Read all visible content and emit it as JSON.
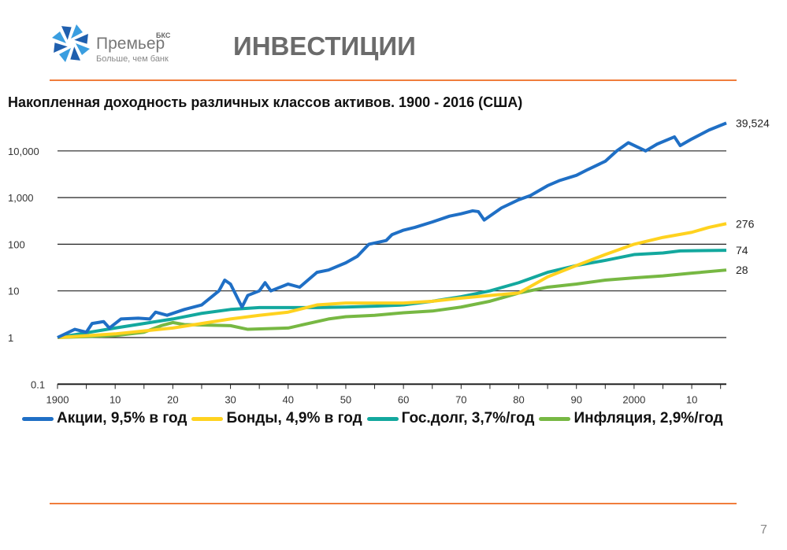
{
  "header": {
    "logo_name": "Премьер",
    "logo_sup": "БКС",
    "logo_tagline": "Больше, чем банк",
    "title": "ИНВЕСТИЦИИ"
  },
  "page_number": "7",
  "chart_data": {
    "type": "line",
    "title": "Накопленная доходность различных классов активов. 1900 - 2016 (США)",
    "xlabel": "",
    "ylabel": "",
    "yscale": "log",
    "ylim": [
      0.1,
      40000
    ],
    "xlim": [
      1900,
      2016
    ],
    "x_ticks": [
      1900,
      1910,
      1920,
      1930,
      1940,
      1950,
      1960,
      1970,
      1980,
      1990,
      2000,
      2010
    ],
    "x_tick_labels": [
      "1900",
      "10",
      "20",
      "30",
      "40",
      "50",
      "60",
      "70",
      "80",
      "90",
      "2000",
      "10"
    ],
    "y_ticks": [
      0.1,
      1,
      10,
      100,
      1000,
      10000
    ],
    "y_tick_labels": [
      "0.1",
      "1",
      "10",
      "100",
      "1,000",
      "10,000"
    ],
    "grid": true,
    "legend": "bottom",
    "series": [
      {
        "name": "Акции, 9,5% в год",
        "color": "#1f6fc5",
        "end_label": "39,524",
        "points": [
          [
            1900,
            1
          ],
          [
            1903,
            1.5
          ],
          [
            1905,
            1.3
          ],
          [
            1906,
            2
          ],
          [
            1908,
            2.2
          ],
          [
            1909,
            1.6
          ],
          [
            1911,
            2.5
          ],
          [
            1914,
            2.6
          ],
          [
            1916,
            2.5
          ],
          [
            1917,
            3.5
          ],
          [
            1919,
            3
          ],
          [
            1922,
            4
          ],
          [
            1925,
            5
          ],
          [
            1928,
            10
          ],
          [
            1929,
            17
          ],
          [
            1930,
            14
          ],
          [
            1932,
            4.5
          ],
          [
            1933,
            8
          ],
          [
            1935,
            10
          ],
          [
            1936,
            15
          ],
          [
            1937,
            10
          ],
          [
            1940,
            14
          ],
          [
            1942,
            12
          ],
          [
            1945,
            25
          ],
          [
            1947,
            28
          ],
          [
            1950,
            40
          ],
          [
            1952,
            55
          ],
          [
            1954,
            100
          ],
          [
            1957,
            120
          ],
          [
            1958,
            160
          ],
          [
            1960,
            200
          ],
          [
            1962,
            230
          ],
          [
            1965,
            300
          ],
          [
            1968,
            400
          ],
          [
            1970,
            450
          ],
          [
            1972,
            520
          ],
          [
            1973,
            500
          ],
          [
            1974,
            330
          ],
          [
            1977,
            600
          ],
          [
            1980,
            900
          ],
          [
            1982,
            1100
          ],
          [
            1985,
            1800
          ],
          [
            1987,
            2300
          ],
          [
            1990,
            3000
          ],
          [
            1992,
            4000
          ],
          [
            1995,
            6000
          ],
          [
            1997,
            10000
          ],
          [
            1999,
            15000
          ],
          [
            2002,
            10000
          ],
          [
            2004,
            14000
          ],
          [
            2007,
            20000
          ],
          [
            2008,
            13000
          ],
          [
            2010,
            18000
          ],
          [
            2013,
            28000
          ],
          [
            2016,
            39524
          ]
        ]
      },
      {
        "name": "Бонды, 4,9% в год",
        "color": "#ffd21f",
        "end_label": "276",
        "points": [
          [
            1900,
            1
          ],
          [
            1910,
            1.2
          ],
          [
            1920,
            1.6
          ],
          [
            1925,
            2
          ],
          [
            1930,
            2.5
          ],
          [
            1935,
            3
          ],
          [
            1940,
            3.5
          ],
          [
            1945,
            5
          ],
          [
            1950,
            5.5
          ],
          [
            1955,
            5.5
          ],
          [
            1960,
            5.5
          ],
          [
            1965,
            6
          ],
          [
            1970,
            7
          ],
          [
            1975,
            8
          ],
          [
            1980,
            9
          ],
          [
            1985,
            20
          ],
          [
            1990,
            35
          ],
          [
            1995,
            60
          ],
          [
            2000,
            100
          ],
          [
            2005,
            140
          ],
          [
            2010,
            180
          ],
          [
            2013,
            230
          ],
          [
            2016,
            276
          ]
        ]
      },
      {
        "name": "Гос.долг, 3,7%/год",
        "color": "#13a89e",
        "end_label": "74",
        "points": [
          [
            1900,
            1
          ],
          [
            1910,
            1.6
          ],
          [
            1920,
            2.5
          ],
          [
            1925,
            3.3
          ],
          [
            1930,
            4
          ],
          [
            1935,
            4.4
          ],
          [
            1940,
            4.4
          ],
          [
            1945,
            4.4
          ],
          [
            1950,
            4.5
          ],
          [
            1955,
            4.7
          ],
          [
            1960,
            5
          ],
          [
            1965,
            6
          ],
          [
            1970,
            7.5
          ],
          [
            1975,
            10
          ],
          [
            1980,
            15
          ],
          [
            1985,
            25
          ],
          [
            1990,
            35
          ],
          [
            1995,
            45
          ],
          [
            2000,
            60
          ],
          [
            2005,
            65
          ],
          [
            2008,
            72
          ],
          [
            2016,
            74
          ]
        ]
      },
      {
        "name": "Инфляция, 2,9%/год",
        "color": "#77b843",
        "end_label": "28",
        "points": [
          [
            1900,
            1
          ],
          [
            1910,
            1.1
          ],
          [
            1915,
            1.3
          ],
          [
            1918,
            1.8
          ],
          [
            1920,
            2.1
          ],
          [
            1922,
            1.9
          ],
          [
            1930,
            1.8
          ],
          [
            1933,
            1.5
          ],
          [
            1940,
            1.6
          ],
          [
            1947,
            2.5
          ],
          [
            1950,
            2.8
          ],
          [
            1955,
            3
          ],
          [
            1960,
            3.4
          ],
          [
            1965,
            3.7
          ],
          [
            1970,
            4.5
          ],
          [
            1975,
            6
          ],
          [
            1980,
            9
          ],
          [
            1985,
            12
          ],
          [
            1990,
            14
          ],
          [
            1995,
            17
          ],
          [
            2000,
            19
          ],
          [
            2005,
            21
          ],
          [
            2010,
            24
          ],
          [
            2016,
            28
          ]
        ]
      }
    ]
  }
}
